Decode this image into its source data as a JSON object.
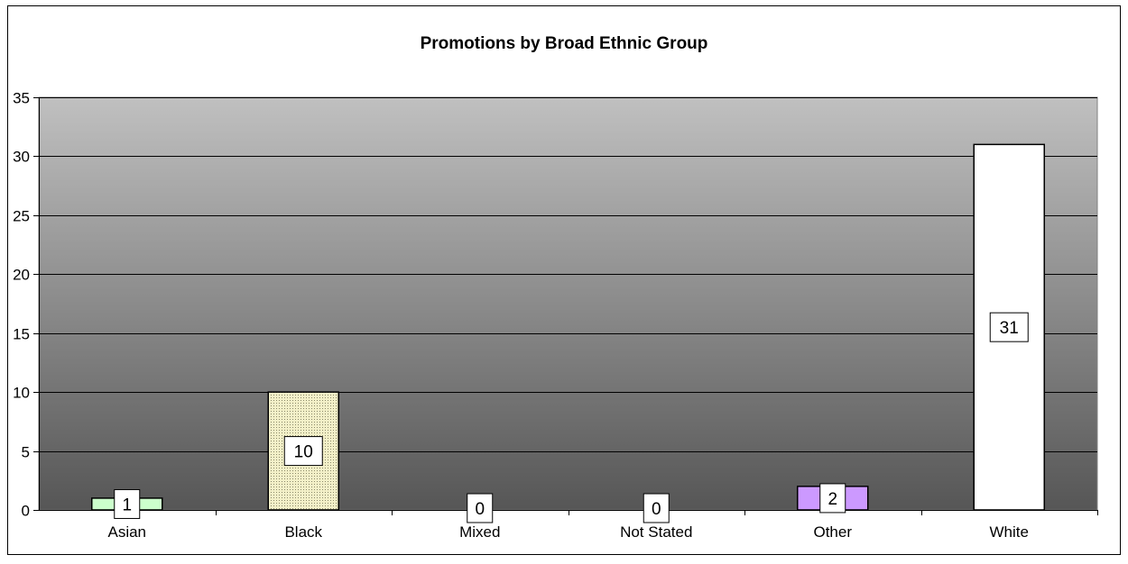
{
  "chart_data": {
    "type": "bar",
    "title": "Promotions by Broad Ethnic Group",
    "xlabel": "",
    "ylabel": "",
    "categories": [
      "Asian",
      "Black",
      "Mixed",
      "Not Stated",
      "Other",
      "White"
    ],
    "values": [
      1,
      10,
      0,
      0,
      2,
      31
    ],
    "data_labels": [
      "1",
      "10",
      "0",
      "0",
      "2",
      "31"
    ],
    "ylim": [
      0,
      35
    ],
    "yticks": [
      0,
      5,
      10,
      15,
      20,
      25,
      30,
      35
    ],
    "grid": true,
    "legend": "none",
    "colors": {
      "plot_bg_top": "#c0c0c0",
      "plot_bg_bottom": "#565656",
      "Asian": "#ccffcc",
      "Black": "#f3f0c8",
      "Mixed": "#ffffff",
      "Not Stated": "#ffffff",
      "Other": "#cc99ff",
      "White": "#ffffff"
    }
  }
}
